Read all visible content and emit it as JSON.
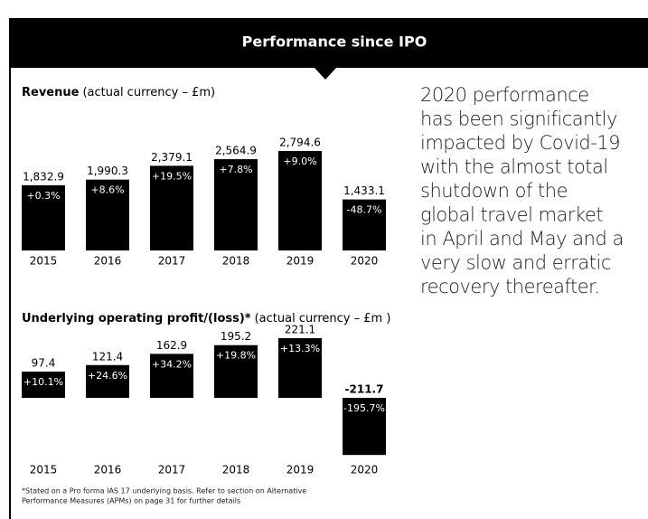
{
  "header": {
    "title": "Performance since IPO"
  },
  "commentary": [
    "2020 performance",
    "has been significantly",
    "impacted by Covid-19",
    "with the almost total",
    "shutdown of the",
    "global travel market",
    "in April and May and a",
    "very slow and erratic",
    "recovery thereafter."
  ],
  "footnote": [
    "*Stated on a Pro forma IAS 17 underlying basis. Refer to section on Alternative",
    "Performance Measures (APMs) on page 31 for further details"
  ],
  "chart_data": [
    {
      "type": "bar",
      "title": "Revenue",
      "subtitle": "(actual currency – £m)",
      "color": "#000000",
      "categories": [
        "2015",
        "2016",
        "2017",
        "2018",
        "2019",
        "2020"
      ],
      "values": [
        1832.9,
        1990.3,
        2379.1,
        2564.9,
        2794.6,
        1433.1
      ],
      "value_labels": [
        "1,832.9",
        "1,990.3",
        "2,379.1",
        "2,564.9",
        "2,794.6",
        "1,433.1"
      ],
      "annotations": [
        "+0.3%",
        "+8.6%",
        "+19.5%",
        "+7.8%",
        "+9.0%",
        "-48.7%"
      ]
    },
    {
      "type": "bar",
      "title": "Underlying operating profit/(loss)*",
      "subtitle": "(actual currency – £m )",
      "color": "#000000",
      "categories": [
        "2015",
        "2016",
        "2017",
        "2018",
        "2019",
        "2020"
      ],
      "values": [
        97.4,
        121.4,
        162.9,
        195.2,
        221.1,
        -211.7
      ],
      "annotations": [
        "+10.1%",
        "+24.6%",
        "+34.2%",
        "+19.8%",
        "+13.3%",
        "-195.7%"
      ]
    }
  ]
}
